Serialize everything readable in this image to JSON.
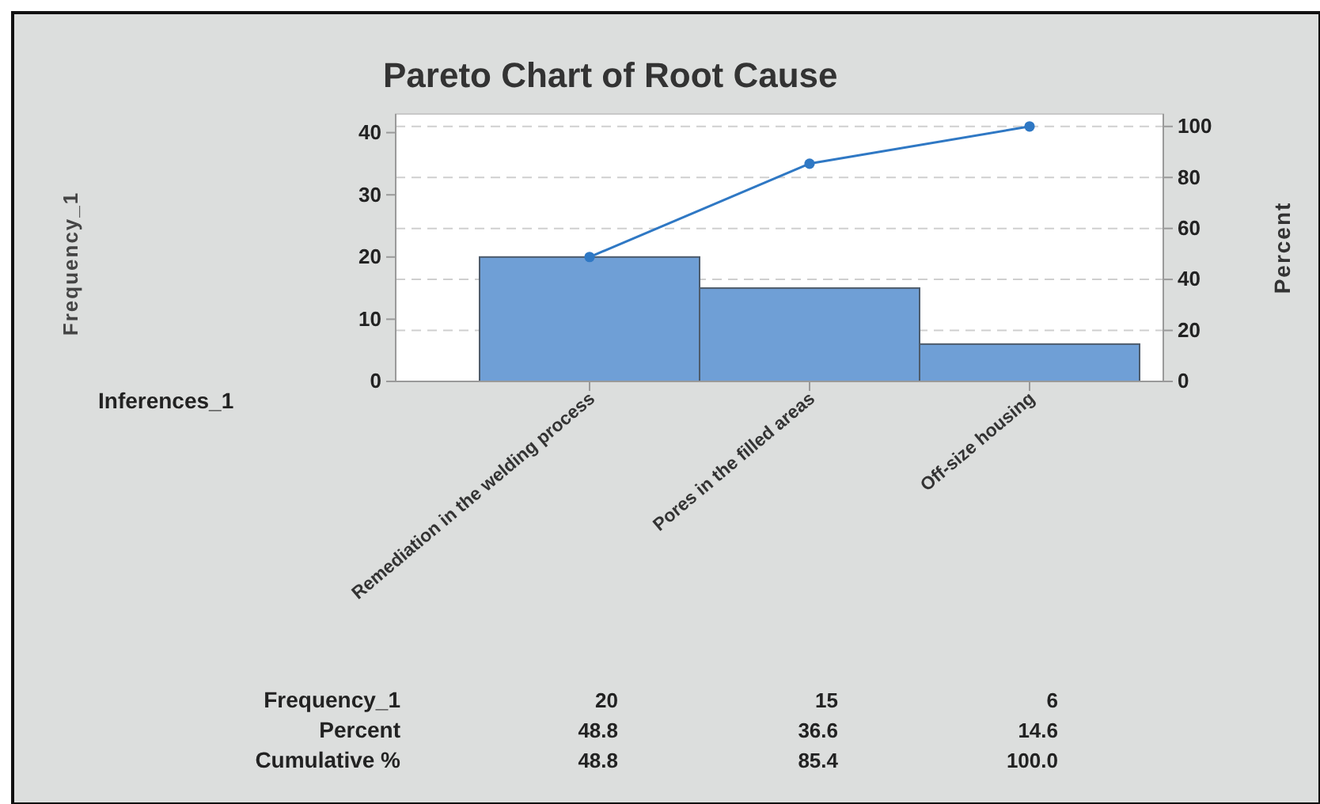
{
  "chart_data": {
    "type": "bar",
    "title": "Pareto Chart of Root Cause",
    "y2label": "Percent",
    "categories": [
      "Remediation in the welding process",
      "Pores in the filled areas",
      "Off-size housing"
    ],
    "series": [
      {
        "color": "#6f9fd6",
        "values": [
          20,
          15,
          6
        ],
        "value_labels": [
          "20",
          "15",
          "6"
        ]
      },
      {
        "type": "line",
        "axis": "y2",
        "color": "#2f78c4",
        "marker": "circle",
        "values": [
          48.8,
          85.4,
          100
        ],
        "value_labels": [
          "48.8",
          "85.4",
          "100.0"
        ]
      }
    ],
    "ylim": [
      0,
      43
    ],
    "yticks": [
      0,
      10,
      20,
      30,
      40
    ],
    "y2lim": [
      0,
      104.9
    ],
    "y2ticks": [
      0,
      20,
      40,
      60,
      80,
      100
    ],
    "grid": "y2",
    "annotations": [
      "Frequency_1",
      "Inferences_1",
      "Frequency_1",
      "Percent",
      "Cumulative %",
      "48.8",
      "36.6",
      "14.6"
    ]
  }
}
